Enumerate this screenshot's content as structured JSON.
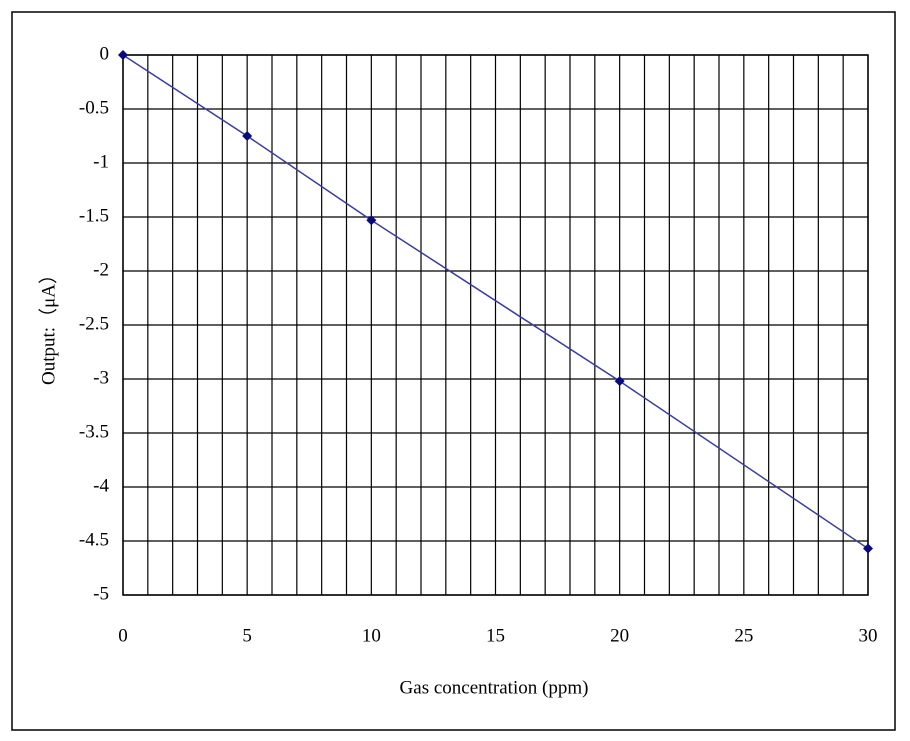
{
  "chart_data": {
    "type": "line",
    "x_label": "Gas concentration (ppm)",
    "y_label": "Output:（μA）",
    "x": [
      0,
      5,
      10,
      20,
      30
    ],
    "series": [
      {
        "line_color": "#3a3aa8",
        "color": "#0a0a80",
        "values": [
          0,
          -0.75,
          -1.53,
          -3.02,
          -4.57
        ]
      }
    ],
    "xlim": [
      0,
      30
    ],
    "xticks": [
      0,
      5,
      10,
      15,
      20,
      25,
      30
    ],
    "xgrid": [
      0,
      1,
      2,
      3,
      4,
      5,
      6,
      7,
      8,
      9,
      10,
      11,
      12,
      13,
      14,
      15,
      16,
      17,
      18,
      19,
      20,
      21,
      22,
      23,
      24,
      25,
      26,
      27,
      28,
      29,
      30
    ],
    "ylim": [
      -5,
      0
    ],
    "yticks": [
      0,
      -0.5,
      -1,
      -1.5,
      -2,
      -2.5,
      -3,
      -3.5,
      -4,
      -4.5,
      -5
    ],
    "grid": true
  }
}
